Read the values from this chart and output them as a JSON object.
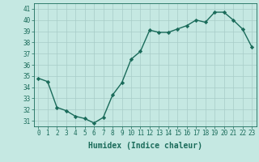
{
  "x": [
    0,
    1,
    2,
    3,
    4,
    5,
    6,
    7,
    8,
    9,
    10,
    11,
    12,
    13,
    14,
    15,
    16,
    17,
    18,
    19,
    20,
    21,
    22,
    23
  ],
  "y": [
    34.8,
    34.5,
    32.2,
    31.9,
    31.4,
    31.2,
    30.8,
    31.3,
    33.3,
    34.4,
    36.5,
    37.2,
    39.1,
    38.9,
    38.9,
    39.2,
    39.5,
    40.0,
    39.8,
    40.7,
    40.7,
    40.0,
    39.2,
    37.6
  ],
  "line_color": "#1a6b5a",
  "marker": "D",
  "markersize": 2.2,
  "linewidth": 1.0,
  "background_color": "#c5e8e2",
  "grid_color": "#a8ccc8",
  "xlabel": "Humidex (Indice chaleur)",
  "xlabel_fontsize": 7,
  "yticks": [
    31,
    32,
    33,
    34,
    35,
    36,
    37,
    38,
    39,
    40,
    41
  ],
  "xticks": [
    0,
    1,
    2,
    3,
    4,
    5,
    6,
    7,
    8,
    9,
    10,
    11,
    12,
    13,
    14,
    15,
    16,
    17,
    18,
    19,
    20,
    21,
    22,
    23
  ],
  "ylim": [
    30.5,
    41.5
  ],
  "xlim": [
    -0.5,
    23.5
  ],
  "tick_fontsize": 5.5
}
